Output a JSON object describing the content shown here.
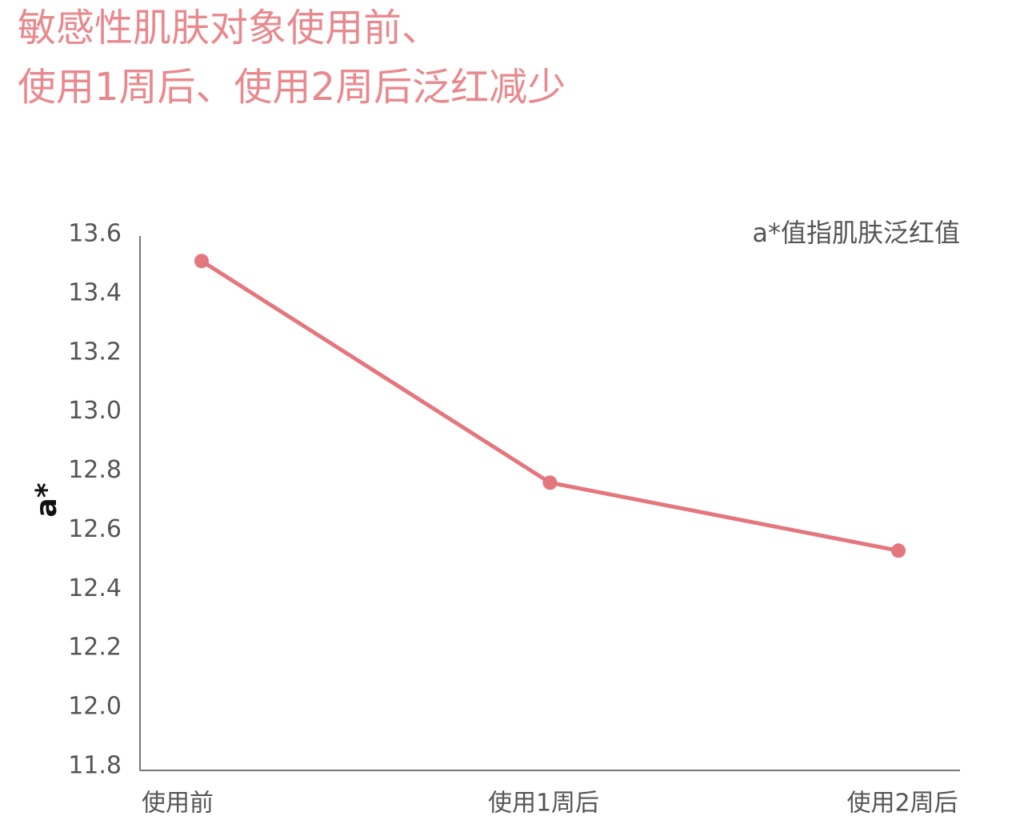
{
  "chart_data": {
    "type": "line",
    "title": [
      "敏感性肌肤对象使用前、",
      "使用1周后、使用2周后泛红减少"
    ],
    "annotation": "a*值指肌肤泛红值",
    "y_label": "a*",
    "categories": [
      "使用前",
      "使用1周后",
      "使用2周后"
    ],
    "series": [
      {
        "color": "#e4767d",
        "values": [
          13.51,
          12.76,
          12.53
        ]
      }
    ],
    "ylim": [
      11.8,
      13.6
    ],
    "yticks": [
      13.6,
      13.4,
      13.2,
      {
        "value": 13,
        "label": "13.0"
      },
      12.8,
      12.6,
      12.4,
      12.2,
      {
        "value": 12,
        "label": "12.0"
      },
      11.8
    ],
    "grid": false
  }
}
